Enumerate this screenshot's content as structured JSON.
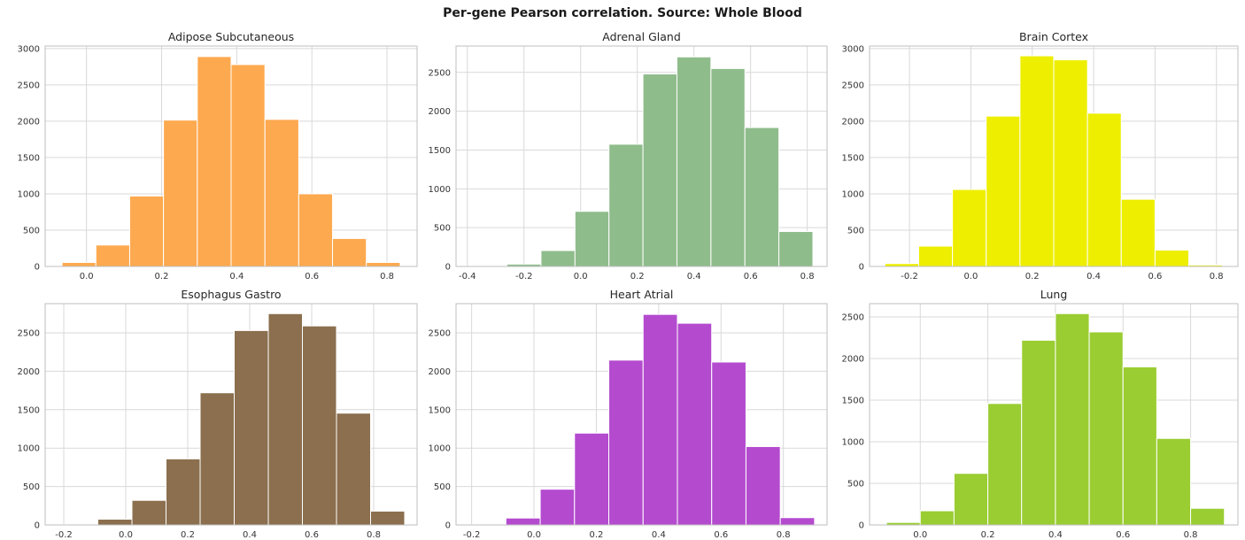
{
  "figure": {
    "title": "Per-gene Pearson correlation. Source: Whole Blood"
  },
  "chart_data": [
    {
      "type": "bar",
      "title": "Adipose Subcutaneous",
      "color": "#FDA94F",
      "bins": [
        {
          "x0": -0.065,
          "x1": 0.025,
          "count": 55
        },
        {
          "x0": 0.025,
          "x1": 0.115,
          "count": 295
        },
        {
          "x0": 0.115,
          "x1": 0.205,
          "count": 970
        },
        {
          "x0": 0.205,
          "x1": 0.295,
          "count": 2015
        },
        {
          "x0": 0.295,
          "x1": 0.385,
          "count": 2890
        },
        {
          "x0": 0.385,
          "x1": 0.475,
          "count": 2780
        },
        {
          "x0": 0.475,
          "x1": 0.565,
          "count": 2025
        },
        {
          "x0": 0.565,
          "x1": 0.655,
          "count": 1000
        },
        {
          "x0": 0.655,
          "x1": 0.745,
          "count": 385
        },
        {
          "x0": 0.745,
          "x1": 0.835,
          "count": 55
        }
      ],
      "xticks": [
        0.0,
        0.2,
        0.4,
        0.6,
        0.8
      ],
      "yticks": [
        0,
        500,
        1000,
        1500,
        2000,
        2500,
        3000
      ],
      "xlim": [
        -0.11,
        0.88
      ],
      "ylim": [
        0,
        3035
      ]
    },
    {
      "type": "bar",
      "title": "Adrenal Gland",
      "color": "#8FBC8B",
      "bins": [
        {
          "x0": -0.38,
          "x1": -0.26,
          "count": 5
        },
        {
          "x0": -0.26,
          "x1": -0.14,
          "count": 30
        },
        {
          "x0": -0.14,
          "x1": -0.02,
          "count": 205
        },
        {
          "x0": -0.02,
          "x1": 0.1,
          "count": 710
        },
        {
          "x0": 0.1,
          "x1": 0.22,
          "count": 1575
        },
        {
          "x0": 0.22,
          "x1": 0.34,
          "count": 2480
        },
        {
          "x0": 0.34,
          "x1": 0.46,
          "count": 2700
        },
        {
          "x0": 0.46,
          "x1": 0.58,
          "count": 2550
        },
        {
          "x0": 0.58,
          "x1": 0.7,
          "count": 1790
        },
        {
          "x0": 0.7,
          "x1": 0.82,
          "count": 450
        }
      ],
      "xticks": [
        -0.4,
        -0.2,
        0.0,
        0.2,
        0.4,
        0.6,
        0.8
      ],
      "yticks": [
        0,
        500,
        1000,
        1500,
        2000,
        2500
      ],
      "xlim": [
        -0.44,
        0.87
      ],
      "ylim": [
        0,
        2840
      ]
    },
    {
      "type": "bar",
      "title": "Brain Cortex",
      "color": "#EEEE00",
      "bins": [
        {
          "x0": -0.28,
          "x1": -0.17,
          "count": 40
        },
        {
          "x0": -0.17,
          "x1": -0.06,
          "count": 280
        },
        {
          "x0": -0.06,
          "x1": 0.05,
          "count": 1060
        },
        {
          "x0": 0.05,
          "x1": 0.16,
          "count": 2070
        },
        {
          "x0": 0.16,
          "x1": 0.27,
          "count": 2900
        },
        {
          "x0": 0.27,
          "x1": 0.38,
          "count": 2845
        },
        {
          "x0": 0.38,
          "x1": 0.49,
          "count": 2110
        },
        {
          "x0": 0.49,
          "x1": 0.6,
          "count": 925
        },
        {
          "x0": 0.6,
          "x1": 0.71,
          "count": 225
        },
        {
          "x0": 0.71,
          "x1": 0.82,
          "count": 20
        }
      ],
      "xticks": [
        -0.2,
        0.0,
        0.2,
        0.4,
        0.6,
        0.8
      ],
      "yticks": [
        0,
        500,
        1000,
        1500,
        2000,
        2500,
        3000
      ],
      "xlim": [
        -0.33,
        0.87
      ],
      "ylim": [
        0,
        3035
      ]
    },
    {
      "type": "bar",
      "title": "Esophagus Gastro",
      "color": "#8B6F4E",
      "bins": [
        {
          "x0": -0.2,
          "x1": -0.09,
          "count": 3
        },
        {
          "x0": -0.09,
          "x1": 0.02,
          "count": 75
        },
        {
          "x0": 0.02,
          "x1": 0.13,
          "count": 320
        },
        {
          "x0": 0.13,
          "x1": 0.24,
          "count": 860
        },
        {
          "x0": 0.24,
          "x1": 0.35,
          "count": 1720
        },
        {
          "x0": 0.35,
          "x1": 0.46,
          "count": 2530
        },
        {
          "x0": 0.46,
          "x1": 0.57,
          "count": 2750
        },
        {
          "x0": 0.57,
          "x1": 0.68,
          "count": 2590
        },
        {
          "x0": 0.68,
          "x1": 0.79,
          "count": 1455
        },
        {
          "x0": 0.79,
          "x1": 0.9,
          "count": 180
        }
      ],
      "xticks": [
        -0.2,
        0.0,
        0.2,
        0.4,
        0.6,
        0.8
      ],
      "yticks": [
        0,
        500,
        1000,
        1500,
        2000,
        2500
      ],
      "xlim": [
        -0.26,
        0.94
      ],
      "ylim": [
        0,
        2880
      ]
    },
    {
      "type": "bar",
      "title": "Heart Atrial",
      "color": "#B44BCF",
      "bins": [
        {
          "x0": -0.2,
          "x1": -0.09,
          "count": 3
        },
        {
          "x0": -0.09,
          "x1": 0.02,
          "count": 90
        },
        {
          "x0": 0.02,
          "x1": 0.13,
          "count": 465
        },
        {
          "x0": 0.13,
          "x1": 0.24,
          "count": 1195
        },
        {
          "x0": 0.24,
          "x1": 0.35,
          "count": 2145
        },
        {
          "x0": 0.35,
          "x1": 0.46,
          "count": 2740
        },
        {
          "x0": 0.46,
          "x1": 0.57,
          "count": 2625
        },
        {
          "x0": 0.57,
          "x1": 0.68,
          "count": 2120
        },
        {
          "x0": 0.68,
          "x1": 0.79,
          "count": 1020
        },
        {
          "x0": 0.79,
          "x1": 0.9,
          "count": 95
        }
      ],
      "xticks": [
        -0.2,
        0.0,
        0.2,
        0.4,
        0.6,
        0.8
      ],
      "yticks": [
        0,
        500,
        1000,
        1500,
        2000,
        2500
      ],
      "xlim": [
        -0.25,
        0.94
      ],
      "ylim": [
        0,
        2880
      ]
    },
    {
      "type": "bar",
      "title": "Lung",
      "color": "#9ACD32",
      "bins": [
        {
          "x0": -0.1,
          "x1": 0.0,
          "count": 30
        },
        {
          "x0": 0.0,
          "x1": 0.1,
          "count": 170
        },
        {
          "x0": 0.1,
          "x1": 0.2,
          "count": 620
        },
        {
          "x0": 0.2,
          "x1": 0.3,
          "count": 1460
        },
        {
          "x0": 0.3,
          "x1": 0.4,
          "count": 2220
        },
        {
          "x0": 0.4,
          "x1": 0.5,
          "count": 2540
        },
        {
          "x0": 0.5,
          "x1": 0.6,
          "count": 2320
        },
        {
          "x0": 0.6,
          "x1": 0.7,
          "count": 1900
        },
        {
          "x0": 0.7,
          "x1": 0.8,
          "count": 1040
        },
        {
          "x0": 0.8,
          "x1": 0.9,
          "count": 200
        }
      ],
      "xticks": [
        0.0,
        0.2,
        0.4,
        0.6,
        0.8
      ],
      "yticks": [
        0,
        500,
        1000,
        1500,
        2000,
        2500
      ],
      "xlim": [
        -0.15,
        0.94
      ],
      "ylim": [
        0,
        2660
      ]
    }
  ]
}
